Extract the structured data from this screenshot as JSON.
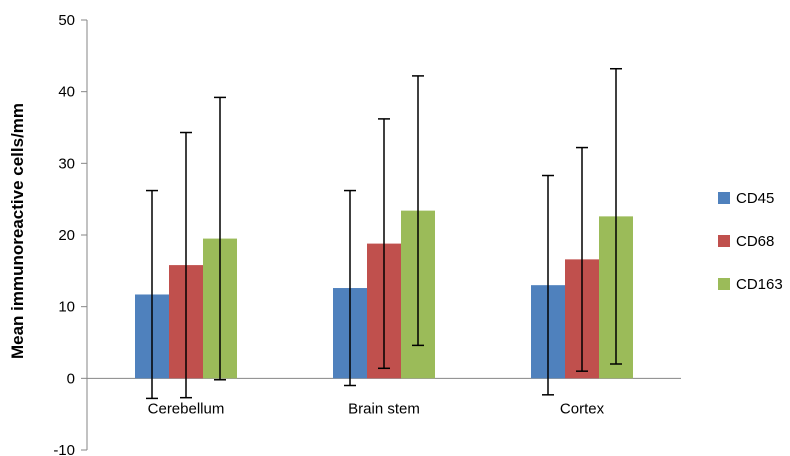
{
  "chart_data": {
    "type": "bar",
    "title": "",
    "xlabel": "",
    "ylabel": "Mean immunoreactive cells/mm",
    "ylim": [
      -10,
      50
    ],
    "yticks": [
      -10,
      0,
      10,
      20,
      30,
      40,
      50
    ],
    "ytick_labels": [
      "-10",
      "0",
      "10",
      "20",
      "30",
      "40",
      "50"
    ],
    "grid": false,
    "legend_position": "right",
    "categories": [
      "Cerebellum",
      "Brain stem",
      "Cortex"
    ],
    "series": [
      {
        "name": "CD45",
        "color": "#4f81bd",
        "values": [
          11.7,
          12.6,
          13.0
        ],
        "error": [
          14.5,
          13.6,
          15.3
        ]
      },
      {
        "name": "CD68",
        "color": "#c0504d",
        "values": [
          15.8,
          18.8,
          16.6
        ],
        "error": [
          18.5,
          17.4,
          15.6
        ]
      },
      {
        "name": "CD163",
        "color": "#9bbb59",
        "values": [
          19.5,
          23.4,
          22.6
        ],
        "error": [
          19.7,
          18.8,
          20.6
        ]
      }
    ]
  }
}
